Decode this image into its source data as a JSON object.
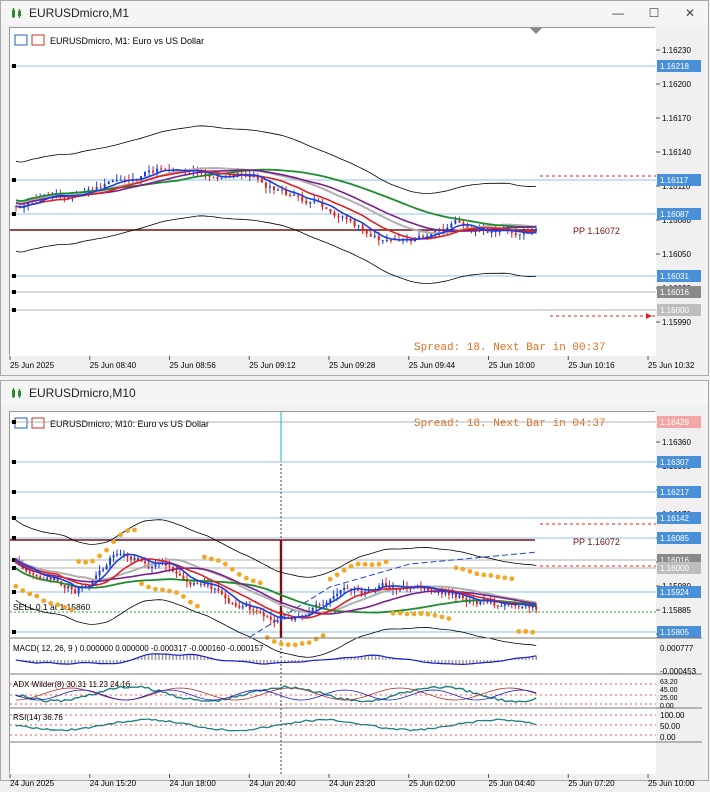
{
  "top": {
    "title": "EURUSDmicro,M1",
    "header": "EURUSDmicro, M1:  Euro vs US Dollar",
    "spread": "Spread: 18. Next Bar in 00:37",
    "pp_label": "PP 1.16072",
    "price_ticks": [
      "1.16230",
      "1.16200",
      "1.16170",
      "1.16140",
      "1.16110",
      "1.16080",
      "1.16050",
      "1.16020",
      "1.15990"
    ],
    "price_badges": [
      {
        "label": "1.16218",
        "color": "#4a90d9"
      },
      {
        "label": "1.16117",
        "color": "#4a90d9"
      },
      {
        "label": "1.16087",
        "color": "#4a90d9"
      },
      {
        "label": "1.16031",
        "color": "#4a90d9"
      },
      {
        "label": "1.16016",
        "color": "#8a8a8a"
      },
      {
        "label": "1.16000",
        "color": "#bdbdbd"
      }
    ],
    "time_ticks": [
      "25 Jun 2025",
      "25 Jun 08:40",
      "25 Jun 08:56",
      "25 Jun 09:12",
      "25 Jun 09:28",
      "25 Jun 09:44",
      "25 Jun 10:00",
      "25 Jun 10:16",
      "25 Jun 10:32"
    ]
  },
  "bottom": {
    "title": "EURUSDmicro,M10",
    "header": "EURUSDmicro, M10:  Euro vs US Dollar",
    "spread": "Spread: 18. Next Bar in 04:37",
    "pp_label": "PP 1.16072",
    "sell_label": "SELL 0.1 at 1.15860",
    "price_ticks": [
      "1.16360",
      "1.16300",
      "1.16240",
      "1.16170",
      "1.16110",
      "1.16050",
      "1.15980",
      "1.15885",
      "1.15805"
    ],
    "price_badges": [
      {
        "label": "1.16429",
        "color": "#f4a6a6"
      },
      {
        "label": "1.16307",
        "color": "#4a90d9"
      },
      {
        "label": "1.16217",
        "color": "#4a90d9"
      },
      {
        "label": "1.16142",
        "color": "#4a90d9"
      },
      {
        "label": "1.16085",
        "color": "#4a90d9"
      },
      {
        "label": "1.16016",
        "color": "#8a8a8a"
      },
      {
        "label": "1.16000",
        "color": "#bdbdbd"
      },
      {
        "label": "1.15924",
        "color": "#4a90d9"
      },
      {
        "label": "1.15805",
        "color": "#4a90d9"
      }
    ],
    "macd_label": "MACD( 12, 26, 9 ) 0.000000 0.000000 -0.000317 -0.000160 -0.000157",
    "macd_ticks": [
      "0.000777",
      "-0.000453"
    ],
    "adx_label": "ADX Wilder(8) 30.31 11.23 24.16",
    "adx_ticks": [
      "63.20",
      "45.00",
      "25.00",
      "0.00"
    ],
    "rsi_label": "RSI(14) 36.76",
    "rsi_ticks": [
      "100.00",
      "50.00",
      "0.00"
    ],
    "time_ticks": [
      "24 Jun 2025",
      "24 Jun 15:20",
      "24 Jun 18:00",
      "24 Jun 20:40",
      "24 Jun 23:20",
      "25 Jun 02:00",
      "25 Jun 04:40",
      "25 Jun 07:20",
      "25 Jun 10:00"
    ]
  },
  "colors": {
    "bull": "#1c3fd6",
    "bear": "#e0201c",
    "grid_blue": "#6aaee8",
    "pp": "#7a0f0f",
    "ma_green": "#1e8c2c",
    "ma_purple": "#7b1f8a",
    "ma_red": "#e02020",
    "ma_blue": "#1a3ee0",
    "ma_gray": "#b0b0b0",
    "sar": "#f5a623"
  },
  "window_buttons": [
    "minimize",
    "maximize",
    "close"
  ]
}
